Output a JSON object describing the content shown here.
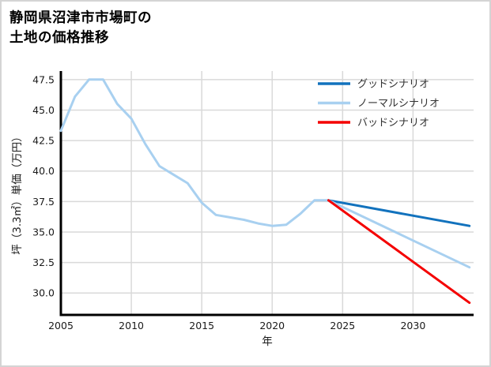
{
  "header": {
    "title_line1": "静岡県沼津市市場町の",
    "title_line2": "土地の価格推移"
  },
  "chart_data": {
    "type": "line",
    "title": "静岡県沼津市市場町の土地の価格推移",
    "xlabel": "年",
    "ylabel": "坪（3.3㎡）単価（万円）",
    "x_ticks": [
      2005,
      2010,
      2015,
      2020,
      2025,
      2030
    ],
    "y_ticks": [
      47.5,
      45.0,
      42.5,
      40.0,
      37.5,
      35.0,
      32.5,
      30.0
    ],
    "xlim": [
      2005,
      2034.3
    ],
    "ylim": [
      28.2,
      48.2
    ],
    "grid": true,
    "legend_position": "top-right",
    "colors": {
      "good": "#1272bd",
      "normal": "#a8d0f0",
      "bad": "#f40000",
      "grid": "#d9d9d9",
      "spine": "#000000"
    },
    "legend": [
      {
        "label": "グッドシナリオ",
        "color": "#1272bd"
      },
      {
        "label": "ノーマルシナリオ",
        "color": "#a8d0f0"
      },
      {
        "label": "バッドシナリオ",
        "color": "#f40000"
      }
    ],
    "series": [
      {
        "id": "history",
        "color": "#a8d0f0",
        "x": [
          2005,
          2006,
          2007,
          2008,
          2009,
          2010,
          2011,
          2012,
          2013,
          2014,
          2015,
          2016,
          2017,
          2018,
          2019,
          2020,
          2021,
          2022,
          2023,
          2024
        ],
        "y": [
          43.3,
          46.1,
          47.5,
          47.5,
          45.5,
          44.3,
          42.2,
          40.4,
          39.7,
          39.0,
          37.4,
          36.4,
          36.2,
          36.0,
          35.7,
          35.5,
          35.6,
          36.5,
          37.6,
          37.6
        ]
      },
      {
        "id": "good-scenario",
        "color": "#1272bd",
        "x": [
          2024,
          2034
        ],
        "y": [
          37.6,
          35.5
        ]
      },
      {
        "id": "normal-scenario",
        "color": "#a8d0f0",
        "x": [
          2024,
          2034
        ],
        "y": [
          37.6,
          32.1
        ]
      },
      {
        "id": "bad-scenario",
        "color": "#f40000",
        "x": [
          2024,
          2034
        ],
        "y": [
          37.6,
          29.2
        ]
      }
    ]
  }
}
